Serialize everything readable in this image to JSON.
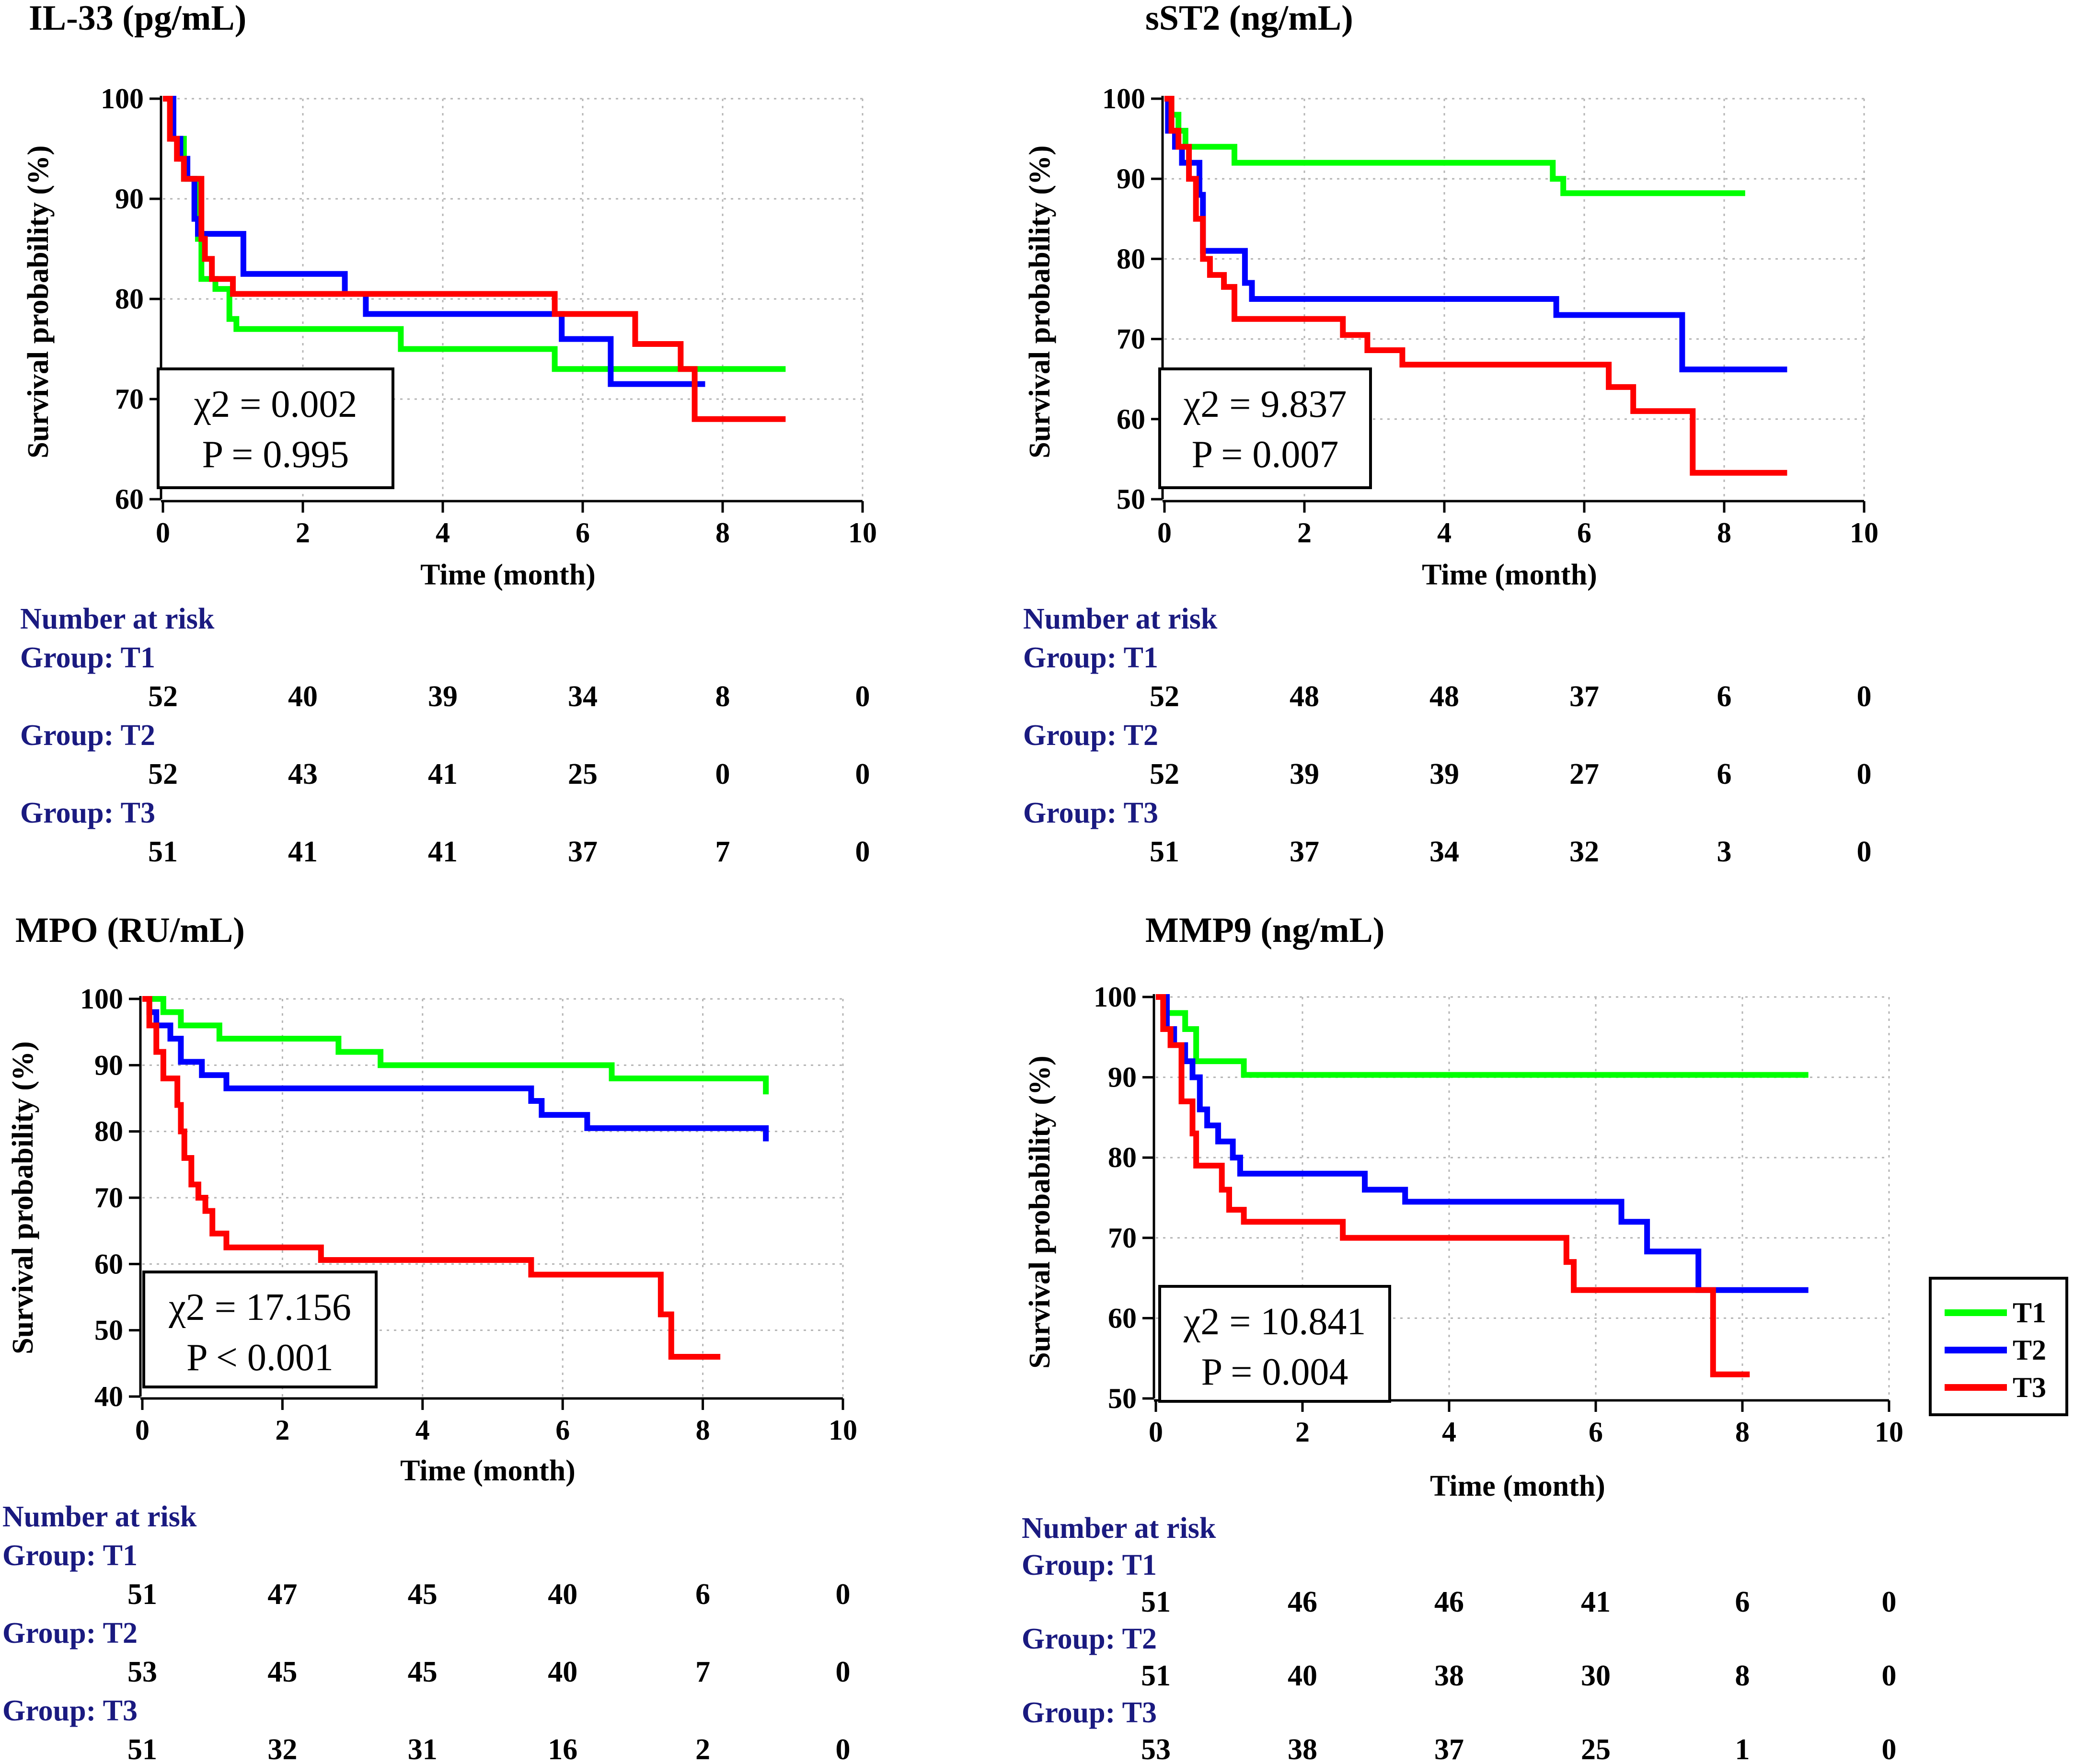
{
  "colors": {
    "T1": "#00ff00",
    "T2": "#0000ff",
    "T3": "#ff0000"
  },
  "legend": [
    {
      "group": "T1",
      "label": "T1"
    },
    {
      "group": "T2",
      "label": "T2"
    },
    {
      "group": "T3",
      "label": "T3"
    }
  ],
  "chart_data": [
    {
      "id": "il33",
      "type": "line",
      "title": "IL-33 (pg/mL)",
      "xlabel": "Time (month)",
      "ylabel": "Survival probability (%)",
      "xlim": [
        0,
        10
      ],
      "ylim": [
        60,
        100
      ],
      "xticks": [
        0,
        2,
        4,
        6,
        8,
        10
      ],
      "yticks": [
        60,
        70,
        80,
        90,
        100
      ],
      "grid": true,
      "stat": {
        "chi2": "χ2 = 0.002",
        "p": "P = 0.995"
      },
      "series": [
        {
          "name": "T1",
          "x": [
            0,
            0.15,
            0.3,
            0.5,
            0.55,
            0.75,
            0.95,
            1.05,
            3.4,
            5.6,
            6.45,
            8.9
          ],
          "y": [
            100,
            96,
            92,
            86,
            82,
            81,
            78,
            77,
            75,
            73,
            73,
            73
          ]
        },
        {
          "name": "T2",
          "x": [
            0,
            0.15,
            0.25,
            0.35,
            0.45,
            0.5,
            0.6,
            1.15,
            2.6,
            2.9,
            5.7,
            6.4,
            7.75
          ],
          "y": [
            100,
            96,
            94,
            92,
            88,
            86.5,
            86.5,
            82.5,
            80.5,
            78.5,
            76,
            71.5,
            71.5
          ]
        },
        {
          "name": "T3",
          "x": [
            0,
            0.1,
            0.2,
            0.3,
            0.55,
            0.6,
            0.7,
            1.0,
            1.2,
            5.6,
            6.75,
            7.4,
            7.6,
            8.9
          ],
          "y": [
            100,
            96,
            94,
            92,
            86,
            84,
            82,
            80.5,
            80.5,
            78.5,
            75.5,
            73,
            68,
            68
          ]
        }
      ],
      "risk": {
        "heading": "Number at risk",
        "groups": [
          {
            "label": "Group: T1",
            "values": [
              52,
              40,
              39,
              34,
              8,
              0
            ]
          },
          {
            "label": "Group: T2",
            "values": [
              52,
              43,
              41,
              25,
              0,
              0
            ]
          },
          {
            "label": "Group: T3",
            "values": [
              51,
              41,
              41,
              37,
              7,
              0
            ]
          }
        ]
      }
    },
    {
      "id": "sst2",
      "type": "line",
      "title": "sST2 (ng/mL)",
      "xlabel": "Time (month)",
      "ylabel": "Survival probability (%)",
      "xlim": [
        0,
        10
      ],
      "ylim": [
        50,
        100
      ],
      "xticks": [
        0,
        2,
        4,
        6,
        8,
        10
      ],
      "yticks": [
        50,
        60,
        70,
        80,
        90,
        100
      ],
      "grid": true,
      "stat": {
        "chi2": "χ2 = 9.837",
        "p": "P = 0.007"
      },
      "series": [
        {
          "name": "T1",
          "x": [
            0,
            0.1,
            0.2,
            0.3,
            1.0,
            5.55,
            5.7,
            8.3
          ],
          "y": [
            100,
            98,
            96,
            94,
            92,
            90,
            88.2,
            88.2
          ]
        },
        {
          "name": "T2",
          "x": [
            0,
            0.05,
            0.15,
            0.25,
            0.5,
            0.55,
            1.15,
            1.25,
            5.6,
            7.4,
            8.9
          ],
          "y": [
            100,
            96,
            94,
            92,
            88,
            81,
            77,
            75,
            73,
            66.2,
            66.2
          ]
        },
        {
          "name": "T3",
          "x": [
            0,
            0.1,
            0.2,
            0.35,
            0.45,
            0.55,
            0.65,
            0.85,
            1.0,
            2.55,
            2.9,
            3.4,
            6.35,
            6.7,
            7.55,
            8.9
          ],
          "y": [
            100,
            96,
            94,
            90,
            85,
            80,
            78,
            76.5,
            72.5,
            70.5,
            68.6,
            66.8,
            64,
            61,
            53.3,
            53.3
          ]
        }
      ],
      "risk": {
        "heading": "Number at risk",
        "groups": [
          {
            "label": "Group: T1",
            "values": [
              52,
              48,
              48,
              37,
              6,
              0
            ]
          },
          {
            "label": "Group: T2",
            "values": [
              52,
              39,
              39,
              27,
              6,
              0
            ]
          },
          {
            "label": "Group: T3",
            "values": [
              51,
              37,
              34,
              32,
              3,
              0
            ]
          }
        ]
      }
    },
    {
      "id": "mpo",
      "type": "line",
      "title": "MPO (RU/mL)",
      "xlabel": "Time (month)",
      "ylabel": "Survival probability (%)",
      "xlim": [
        0,
        10
      ],
      "ylim": [
        40,
        100
      ],
      "xticks": [
        0,
        2,
        4,
        6,
        8,
        10
      ],
      "yticks": [
        40,
        50,
        60,
        70,
        80,
        90,
        100
      ],
      "grid": true,
      "stat": {
        "chi2": "χ2 = 17.156",
        "p": "P < 0.001"
      },
      "series": [
        {
          "name": "T1",
          "x": [
            0,
            0.3,
            0.55,
            1.1,
            2.8,
            3.4,
            6.7,
            8.9
          ],
          "y": [
            100,
            98,
            96,
            94,
            92,
            90,
            88,
            85.6
          ]
        },
        {
          "name": "T2",
          "x": [
            0,
            0.1,
            0.2,
            0.4,
            0.55,
            0.85,
            1.2,
            5.55,
            5.7,
            6.35,
            8.9
          ],
          "y": [
            100,
            98,
            96,
            94,
            90.5,
            88.5,
            86.5,
            84.6,
            82.5,
            80.5,
            78.5
          ]
        },
        {
          "name": "T3",
          "x": [
            0,
            0.1,
            0.2,
            0.3,
            0.5,
            0.55,
            0.6,
            0.7,
            0.8,
            0.9,
            1.0,
            1.2,
            2.55,
            5.55,
            7.4,
            7.55,
            8.25
          ],
          "y": [
            100,
            96,
            92,
            88,
            84,
            80,
            76,
            72,
            70,
            68,
            64.6,
            62.5,
            60.6,
            58.4,
            52.4,
            46,
            46
          ]
        }
      ],
      "risk": {
        "heading": "Number at risk",
        "groups": [
          {
            "label": "Group: T1",
            "values": [
              51,
              47,
              45,
              40,
              6,
              0
            ]
          },
          {
            "label": "Group: T2",
            "values": [
              53,
              45,
              45,
              40,
              7,
              0
            ]
          },
          {
            "label": "Group: T3",
            "values": [
              51,
              32,
              31,
              16,
              2,
              0
            ]
          }
        ]
      }
    },
    {
      "id": "mmp9",
      "type": "line",
      "title": "MMP9 (ng/mL)",
      "xlabel": "Time (month)",
      "ylabel": "Survival probability (%)",
      "xlim": [
        0,
        10
      ],
      "ylim": [
        50,
        100
      ],
      "xticks": [
        0,
        2,
        4,
        6,
        8,
        10
      ],
      "yticks": [
        50,
        60,
        70,
        80,
        90,
        100
      ],
      "grid": true,
      "stat": {
        "chi2": "χ2 = 10.841",
        "p": "P = 0.004"
      },
      "series": [
        {
          "name": "T1",
          "x": [
            0,
            0.1,
            0.4,
            0.55,
            1.2,
            8.9
          ],
          "y": [
            100,
            98,
            96,
            92,
            90.3,
            90.3
          ]
        },
        {
          "name": "T2",
          "x": [
            0,
            0.15,
            0.25,
            0.4,
            0.5,
            0.6,
            0.7,
            0.85,
            1.05,
            1.15,
            2.85,
            3.4,
            6.35,
            6.7,
            7.4,
            8.9
          ],
          "y": [
            100,
            96,
            94,
            92,
            90,
            86,
            84,
            82,
            80,
            78,
            76,
            74.5,
            72,
            68.3,
            63.5,
            63.5
          ]
        },
        {
          "name": "T3",
          "x": [
            0,
            0.1,
            0.2,
            0.35,
            0.5,
            0.55,
            0.9,
            1.0,
            1.2,
            2.55,
            5.6,
            5.7,
            7.6,
            8.1
          ],
          "y": [
            100,
            96,
            94,
            87,
            83,
            79,
            76,
            73.5,
            72,
            70,
            67,
            63.5,
            53,
            53
          ]
        }
      ],
      "risk": {
        "heading": "Number at risk",
        "groups": [
          {
            "label": "Group: T1",
            "values": [
              51,
              46,
              46,
              41,
              6,
              0
            ]
          },
          {
            "label": "Group: T2",
            "values": [
              51,
              40,
              38,
              30,
              8,
              0
            ]
          },
          {
            "label": "Group: T3",
            "values": [
              53,
              38,
              37,
              25,
              1,
              0
            ]
          }
        ]
      }
    }
  ]
}
